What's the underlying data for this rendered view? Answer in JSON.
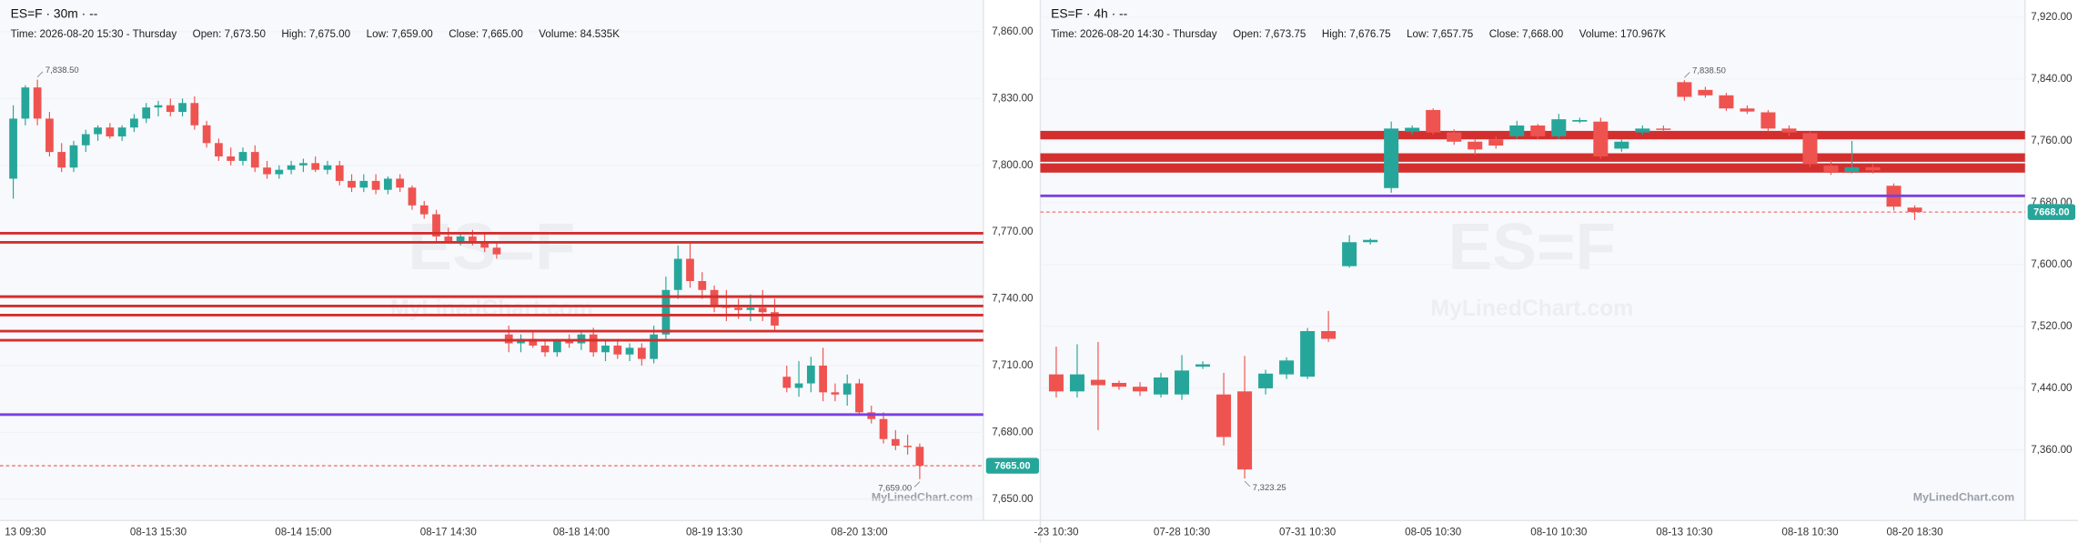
{
  "chart_data": [
    {
      "type": "candlestick",
      "title": "ES=F · 30m · --",
      "header": [
        "Time: 2026-08-20 15:30 - Thursday",
        "Open: 7,673.50",
        "High: 7,675.00",
        "Low: 7,659.00",
        "Close: 7,665.00",
        "Volume: 84.535K"
      ],
      "watermark": "ES=F",
      "watermark_site": "MyLinedChart.com",
      "up_color": "#26a69a",
      "down_color": "#ef5350",
      "categories": [
        null,
        "13 09:30",
        null,
        null,
        null,
        null,
        null,
        null,
        null,
        null,
        null,
        null,
        "08-13 15:30",
        null,
        null,
        null,
        null,
        null,
        null,
        null,
        null,
        null,
        null,
        null,
        "08-14 15:00",
        null,
        null,
        null,
        null,
        null,
        null,
        null,
        null,
        null,
        null,
        null,
        "08-17 14:30",
        null,
        null,
        null,
        null,
        null,
        null,
        null,
        null,
        null,
        null,
        "08-18 14:00",
        null,
        null,
        null,
        null,
        null,
        null,
        null,
        null,
        null,
        null,
        "08-19 13:30",
        null,
        null,
        null,
        null,
        null,
        null,
        null,
        null,
        null,
        null,
        null,
        "08-20 13:00",
        null,
        null,
        null,
        null,
        null
      ],
      "open": [
        7794,
        7821,
        7835,
        7821,
        7806,
        7799,
        7809,
        7814,
        7817,
        7813,
        7817,
        7821,
        7826,
        7827,
        7824,
        7828,
        7818,
        7810,
        7804,
        7802,
        7806,
        7799,
        7796,
        7798,
        7800,
        7801,
        7798,
        7800,
        7793,
        7790,
        7793,
        7789,
        7794,
        7790,
        7782,
        7778,
        7768,
        7766,
        7768,
        7766,
        7763,
        7724,
        7720,
        7722,
        7719,
        7716,
        7721,
        7720,
        7724,
        7716,
        7719,
        7715,
        7718,
        7713,
        7724,
        7744,
        7758,
        7748,
        7744,
        7737,
        7736,
        7735,
        7736,
        7734,
        7705,
        7700,
        7702,
        7710,
        7698,
        7697,
        7702,
        7689,
        7686,
        7677,
        7674,
        7673.5
      ],
      "high": [
        7827,
        7836,
        7838.5,
        7824,
        7810,
        7811,
        7816,
        7818,
        7819,
        7818,
        7823,
        7828,
        7829,
        7830,
        7830,
        7831,
        7820,
        7812,
        7808,
        7808,
        7809,
        7802,
        7800,
        7802,
        7803,
        7804,
        7802,
        7802,
        7796,
        7796,
        7796,
        7795,
        7796,
        7791,
        7784,
        7780,
        7772,
        7770,
        7771,
        7769,
        7765,
        7728,
        7724,
        7726,
        7722,
        7722,
        7724,
        7726,
        7727,
        7721,
        7722,
        7720,
        7720,
        7728,
        7750,
        7764,
        7766,
        7752,
        7746,
        7744,
        7740,
        7742,
        7744,
        7740,
        7710,
        7712,
        7714,
        7718,
        7702,
        7706,
        7704,
        7692,
        7689,
        7681,
        7679,
        7675
      ],
      "low": [
        7785,
        7818,
        7818,
        7804,
        7797,
        7797,
        7806,
        7811,
        7812,
        7811,
        7815,
        7819,
        7822,
        7822,
        7822,
        7816,
        7808,
        7802,
        7800,
        7800,
        7797,
        7794,
        7794,
        7796,
        7797,
        7797,
        7796,
        7791,
        7788,
        7788,
        7787,
        7787,
        7788,
        7780,
        7776,
        7766,
        7765,
        7764,
        7764,
        7761,
        7758,
        7716,
        7716,
        7718,
        7714,
        7714,
        7718,
        7717,
        7714,
        7712,
        7713,
        7712,
        7710,
        7711,
        7722,
        7740,
        7745,
        7740,
        7734,
        7730,
        7731,
        7730,
        7730,
        7726,
        7698,
        7696,
        7698,
        7694,
        7694,
        7692,
        7688,
        7684,
        7675,
        7672,
        7670,
        7659
      ],
      "close": [
        7821,
        7835,
        7821,
        7806,
        7799,
        7809,
        7814,
        7817,
        7813,
        7817,
        7821,
        7826,
        7827,
        7824,
        7828,
        7818,
        7810,
        7804,
        7802,
        7806,
        7799,
        7796,
        7798,
        7800,
        7801,
        7798,
        7800,
        7793,
        7790,
        7793,
        7789,
        7794,
        7790,
        7782,
        7778,
        7768,
        7766,
        7768,
        7766,
        7763,
        7760,
        7720,
        7722,
        7719,
        7716,
        7721,
        7720,
        7724,
        7716,
        7719,
        7715,
        7718,
        7713,
        7724,
        7744,
        7758,
        7748,
        7744,
        7737,
        7736,
        7735,
        7736,
        7734,
        7728,
        7700,
        7702,
        7710,
        7698,
        7697,
        7702,
        7689,
        7686,
        7677,
        7674,
        7673.5,
        7665
      ],
      "max_label": "7,838.50",
      "min_label": "7,659.00",
      "ylim": [
        7640.4,
        7874.3
      ],
      "yticks": [
        {
          "value": 7860,
          "label": "7,860.00"
        },
        {
          "value": 7830,
          "label": "7,830.00"
        },
        {
          "value": 7800,
          "label": "7,800.00"
        },
        {
          "value": 7770,
          "label": "7,770.00"
        },
        {
          "value": 7740,
          "label": "7,740.00"
        },
        {
          "value": 7710,
          "label": "7,710.00"
        },
        {
          "value": 7680,
          "label": "7,680.00"
        },
        {
          "value": 7650,
          "label": "7,650.00"
        }
      ],
      "grid": true,
      "levels": [
        {
          "value": 7769.5,
          "color": "#d32f2f"
        },
        {
          "value": 7765.4,
          "color": "#d32f2f"
        },
        {
          "value": 7741,
          "color": "#d32f2f"
        },
        {
          "value": 7736.8,
          "color": "#d32f2f"
        },
        {
          "value": 7732.7,
          "color": "#d32f2f"
        },
        {
          "value": 7725.5,
          "color": "#d32f2f"
        },
        {
          "value": 7721.4,
          "color": "#d32f2f"
        },
        {
          "value": 7688,
          "color": "#7b3fe4"
        }
      ],
      "zones": [],
      "last_price": {
        "value": 7665,
        "label": "7665.00",
        "color": "#26a69a"
      }
    },
    {
      "type": "candlestick",
      "title": "ES=F · 4h · --",
      "header": [
        "Time: 2026-08-20 14:30 - Thursday",
        "Open: 7,673.75",
        "High: 7,676.75",
        "Low: 7,657.75",
        "Close: 7,668.00",
        "Volume: 170.967K"
      ],
      "watermark": "ES=F",
      "watermark_site": "MyLinedChart.com",
      "up_color": "#26a69a",
      "down_color": "#ef5350",
      "categories": [
        "-23 10:30",
        null,
        null,
        null,
        null,
        null,
        "07-28 10:30",
        null,
        null,
        null,
        null,
        null,
        "07-31 10:30",
        null,
        null,
        null,
        null,
        null,
        "08-05 10:30",
        null,
        null,
        null,
        null,
        null,
        "08-10 10:30",
        null,
        null,
        null,
        null,
        null,
        "08-13 10:30",
        null,
        null,
        null,
        null,
        null,
        "08-18 10:30",
        null,
        null,
        null,
        null,
        "08-20 18:30"
      ],
      "open": [
        7458,
        7436,
        7451,
        7447,
        7442,
        7432,
        7432,
        7468,
        7432,
        7436,
        7440,
        7458,
        7455,
        7514,
        7598,
        7629,
        7699,
        7772,
        7800,
        7771,
        7759,
        7762,
        7766,
        7780,
        7766,
        7785,
        7785,
        7750,
        7771,
        7776,
        7836,
        7826,
        7819,
        7802,
        7797,
        7776,
        7770,
        7728,
        7720,
        7726,
        7702,
        7673.75
      ],
      "high": [
        7494,
        7497,
        7500,
        7450,
        7448,
        7460,
        7483,
        7475,
        7460,
        7482,
        7464,
        7480,
        7518,
        7540,
        7638,
        7634,
        7785,
        7780,
        7802,
        7775,
        7762,
        7766,
        7786,
        7782,
        7795,
        7790,
        7790,
        7762,
        7780,
        7780,
        7838.5,
        7830,
        7822,
        7806,
        7800,
        7780,
        7772,
        7735,
        7760,
        7730,
        7705,
        7676.75
      ],
      "low": [
        7428,
        7428,
        7386,
        7438,
        7430,
        7428,
        7425,
        7465,
        7366,
        7323.25,
        7432,
        7452,
        7452,
        7500,
        7596,
        7626,
        7693,
        7768,
        7768,
        7755,
        7742,
        7750,
        7762,
        7762,
        7762,
        7783,
        7737,
        7746,
        7768,
        7772,
        7812,
        7816,
        7799,
        7795,
        7772,
        7766,
        7726,
        7716,
        7718,
        7718,
        7670,
        7657.75
      ],
      "close": [
        7436,
        7458,
        7444,
        7442,
        7436,
        7454,
        7463,
        7471,
        7377,
        7335,
        7459,
        7476,
        7514,
        7504,
        7629,
        7632,
        7776,
        7777,
        7771,
        7759,
        7749,
        7754,
        7780,
        7766,
        7788,
        7787,
        7740,
        7759,
        7776,
        7775,
        7817,
        7819,
        7802,
        7798,
        7776,
        7771,
        7730,
        7720,
        7726,
        7722,
        7675,
        7668
      ],
      "max_label": "7,838.50",
      "min_label": "7,323.25",
      "ylim": [
        7269,
        7942.3
      ],
      "yticks": [
        {
          "value": 7920,
          "label": "7,920.00"
        },
        {
          "value": 7840,
          "label": "7,840.00"
        },
        {
          "value": 7760,
          "label": "7,760.00"
        },
        {
          "value": 7680,
          "label": "7,680.00"
        },
        {
          "value": 7600,
          "label": "7,600.00"
        },
        {
          "value": 7520,
          "label": "7,520.00"
        },
        {
          "value": 7440,
          "label": "7,440.00"
        },
        {
          "value": 7360,
          "label": "7,360.00"
        }
      ],
      "grid": true,
      "levels": [
        {
          "value": 7689,
          "color": "#7b3fe4"
        }
      ],
      "zones": [
        {
          "from": 7773,
          "to": 7762,
          "color": "#d32f2f"
        },
        {
          "from": 7744,
          "to": 7733,
          "color": "#d32f2f"
        },
        {
          "from": 7731,
          "to": 7719,
          "color": "#d32f2f"
        }
      ],
      "last_price": {
        "value": 7668,
        "label": "7668.00",
        "color": "#26a69a"
      }
    }
  ]
}
